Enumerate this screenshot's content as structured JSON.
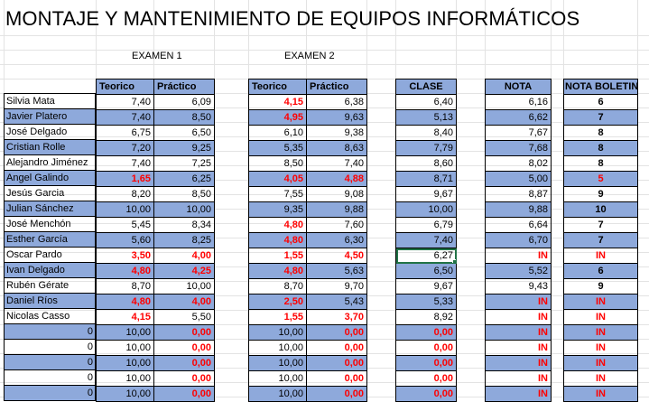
{
  "title": "MONTAJE Y MANTENIMIENTO DE EQUIPOS INFORMÁTICOS",
  "exam1_label": "EXAMEN 1",
  "exam2_label": "EXAMEN 2",
  "headers": {
    "teorico": "Teorico",
    "practico": "Práctico",
    "clase": "CLASE",
    "nota": "NOTA",
    "boletin": "NOTA BOLETIN"
  },
  "colors": {
    "header_fill": "#8ea9db",
    "band_fill": "#8ea9db",
    "failing_text": "#ff0000",
    "selection": "#217346"
  },
  "rows": [
    {
      "name": "Silvia Mata",
      "e1t": "7,40",
      "e1p": "6,09",
      "e2t": "4,15",
      "e2p": "6,38",
      "clase": "6,40",
      "nota": "6,16",
      "bol": "6",
      "r": [
        0,
        0,
        1,
        0,
        0,
        0,
        0
      ],
      "band": false
    },
    {
      "name": "Javier Platero",
      "e1t": "7,40",
      "e1p": "8,50",
      "e2t": "4,95",
      "e2p": "9,63",
      "clase": "5,13",
      "nota": "6,62",
      "bol": "7",
      "r": [
        0,
        0,
        1,
        0,
        0,
        0,
        0
      ],
      "band": true
    },
    {
      "name": "José Delgado",
      "e1t": "6,75",
      "e1p": "6,50",
      "e2t": "6,10",
      "e2p": "9,38",
      "clase": "8,40",
      "nota": "7,67",
      "bol": "8",
      "r": [
        0,
        0,
        0,
        0,
        0,
        0,
        0
      ],
      "band": false
    },
    {
      "name": "Cristian Rolle",
      "e1t": "7,20",
      "e1p": "9,25",
      "e2t": "5,35",
      "e2p": "8,63",
      "clase": "7,79",
      "nota": "7,68",
      "bol": "8",
      "r": [
        0,
        0,
        0,
        0,
        0,
        0,
        0
      ],
      "band": true
    },
    {
      "name": "Alejandro Jiménez",
      "e1t": "7,40",
      "e1p": "7,25",
      "e2t": "8,50",
      "e2p": "7,40",
      "clase": "8,60",
      "nota": "8,02",
      "bol": "8",
      "r": [
        0,
        0,
        0,
        0,
        0,
        0,
        0
      ],
      "band": false
    },
    {
      "name": "Angel Galindo",
      "e1t": "1,65",
      "e1p": "6,25",
      "e2t": "4,05",
      "e2p": "4,88",
      "clase": "8,71",
      "nota": "5,00",
      "bol": "5",
      "r": [
        1,
        0,
        1,
        1,
        0,
        0,
        1
      ],
      "band": true
    },
    {
      "name": "Jesús Garcia",
      "e1t": "8,20",
      "e1p": "8,50",
      "e2t": "7,55",
      "e2p": "9,08",
      "clase": "9,67",
      "nota": "8,87",
      "bol": "9",
      "r": [
        0,
        0,
        0,
        0,
        0,
        0,
        0
      ],
      "band": false
    },
    {
      "name": "Julian Sánchez",
      "e1t": "10,00",
      "e1p": "10,00",
      "e2t": "9,35",
      "e2p": "9,88",
      "clase": "10,00",
      "nota": "9,88",
      "bol": "10",
      "r": [
        0,
        0,
        0,
        0,
        0,
        0,
        0
      ],
      "band": true
    },
    {
      "name": "José Menchón",
      "e1t": "5,45",
      "e1p": "8,34",
      "e2t": "4,80",
      "e2p": "7,60",
      "clase": "6,79",
      "nota": "6,64",
      "bol": "7",
      "r": [
        0,
        0,
        1,
        0,
        0,
        0,
        0
      ],
      "band": false
    },
    {
      "name": "Esther García",
      "e1t": "5,60",
      "e1p": "8,25",
      "e2t": "4,80",
      "e2p": "6,30",
      "clase": "7,40",
      "nota": "6,70",
      "bol": "7",
      "r": [
        0,
        0,
        1,
        0,
        0,
        0,
        0
      ],
      "band": true
    },
    {
      "name": "Oscar Pardo",
      "e1t": "3,50",
      "e1p": "4,00",
      "e2t": "1,55",
      "e2p": "4,50",
      "clase": "6,27",
      "nota": "IN",
      "bol": "IN",
      "r": [
        1,
        1,
        1,
        1,
        0,
        1,
        1
      ],
      "band": false,
      "selected": true
    },
    {
      "name": "Ivan Delgado",
      "e1t": "4,80",
      "e1p": "4,25",
      "e2t": "4,80",
      "e2p": "5,63",
      "clase": "6,50",
      "nota": "5,52",
      "bol": "6",
      "r": [
        1,
        1,
        1,
        0,
        0,
        0,
        0
      ],
      "band": true
    },
    {
      "name": "Rubén Gérate",
      "e1t": "8,70",
      "e1p": "10,00",
      "e2t": "8,70",
      "e2p": "9,70",
      "clase": "9,67",
      "nota": "9,43",
      "bol": "9",
      "r": [
        0,
        0,
        0,
        0,
        0,
        0,
        0
      ],
      "band": false
    },
    {
      "name": "Daniel Ríos",
      "e1t": "4,80",
      "e1p": "4,00",
      "e2t": "2,50",
      "e2p": "5,43",
      "clase": "5,33",
      "nota": "IN",
      "bol": "IN",
      "r": [
        1,
        1,
        1,
        0,
        0,
        1,
        1
      ],
      "band": true
    },
    {
      "name": "Nicolas Casso",
      "e1t": "4,15",
      "e1p": "5,50",
      "e2t": "1,55",
      "e2p": "3,70",
      "clase": "8,92",
      "nota": "IN",
      "bol": "IN",
      "r": [
        1,
        0,
        1,
        1,
        0,
        1,
        1
      ],
      "band": false
    },
    {
      "name": "0",
      "e1t": "10,00",
      "e1p": "0,00",
      "e2t": "10,00",
      "e2p": "0,00",
      "clase": "0,00",
      "nota": "IN",
      "bol": "IN",
      "r": [
        0,
        1,
        0,
        1,
        1,
        1,
        1
      ],
      "band": true,
      "zero": true
    },
    {
      "name": "0",
      "e1t": "10,00",
      "e1p": "0,00",
      "e2t": "10,00",
      "e2p": "0,00",
      "clase": "0,00",
      "nota": "IN",
      "bol": "IN",
      "r": [
        0,
        1,
        0,
        1,
        1,
        1,
        1
      ],
      "band": false,
      "zero": true
    },
    {
      "name": "0",
      "e1t": "10,00",
      "e1p": "0,00",
      "e2t": "10,00",
      "e2p": "0,00",
      "clase": "0,00",
      "nota": "IN",
      "bol": "IN",
      "r": [
        0,
        1,
        0,
        1,
        1,
        1,
        1
      ],
      "band": true,
      "zero": true
    },
    {
      "name": "0",
      "e1t": "10,00",
      "e1p": "0,00",
      "e2t": "10,00",
      "e2p": "0,00",
      "clase": "0,00",
      "nota": "IN",
      "bol": "IN",
      "r": [
        0,
        1,
        0,
        1,
        1,
        1,
        1
      ],
      "band": false,
      "zero": true
    },
    {
      "name": "0",
      "e1t": "10,00",
      "e1p": "0,00",
      "e2t": "10,00",
      "e2p": "0,00",
      "clase": "0,00",
      "nota": "IN",
      "bol": "IN",
      "r": [
        0,
        1,
        0,
        1,
        1,
        1,
        1
      ],
      "band": true,
      "zero": true
    }
  ]
}
